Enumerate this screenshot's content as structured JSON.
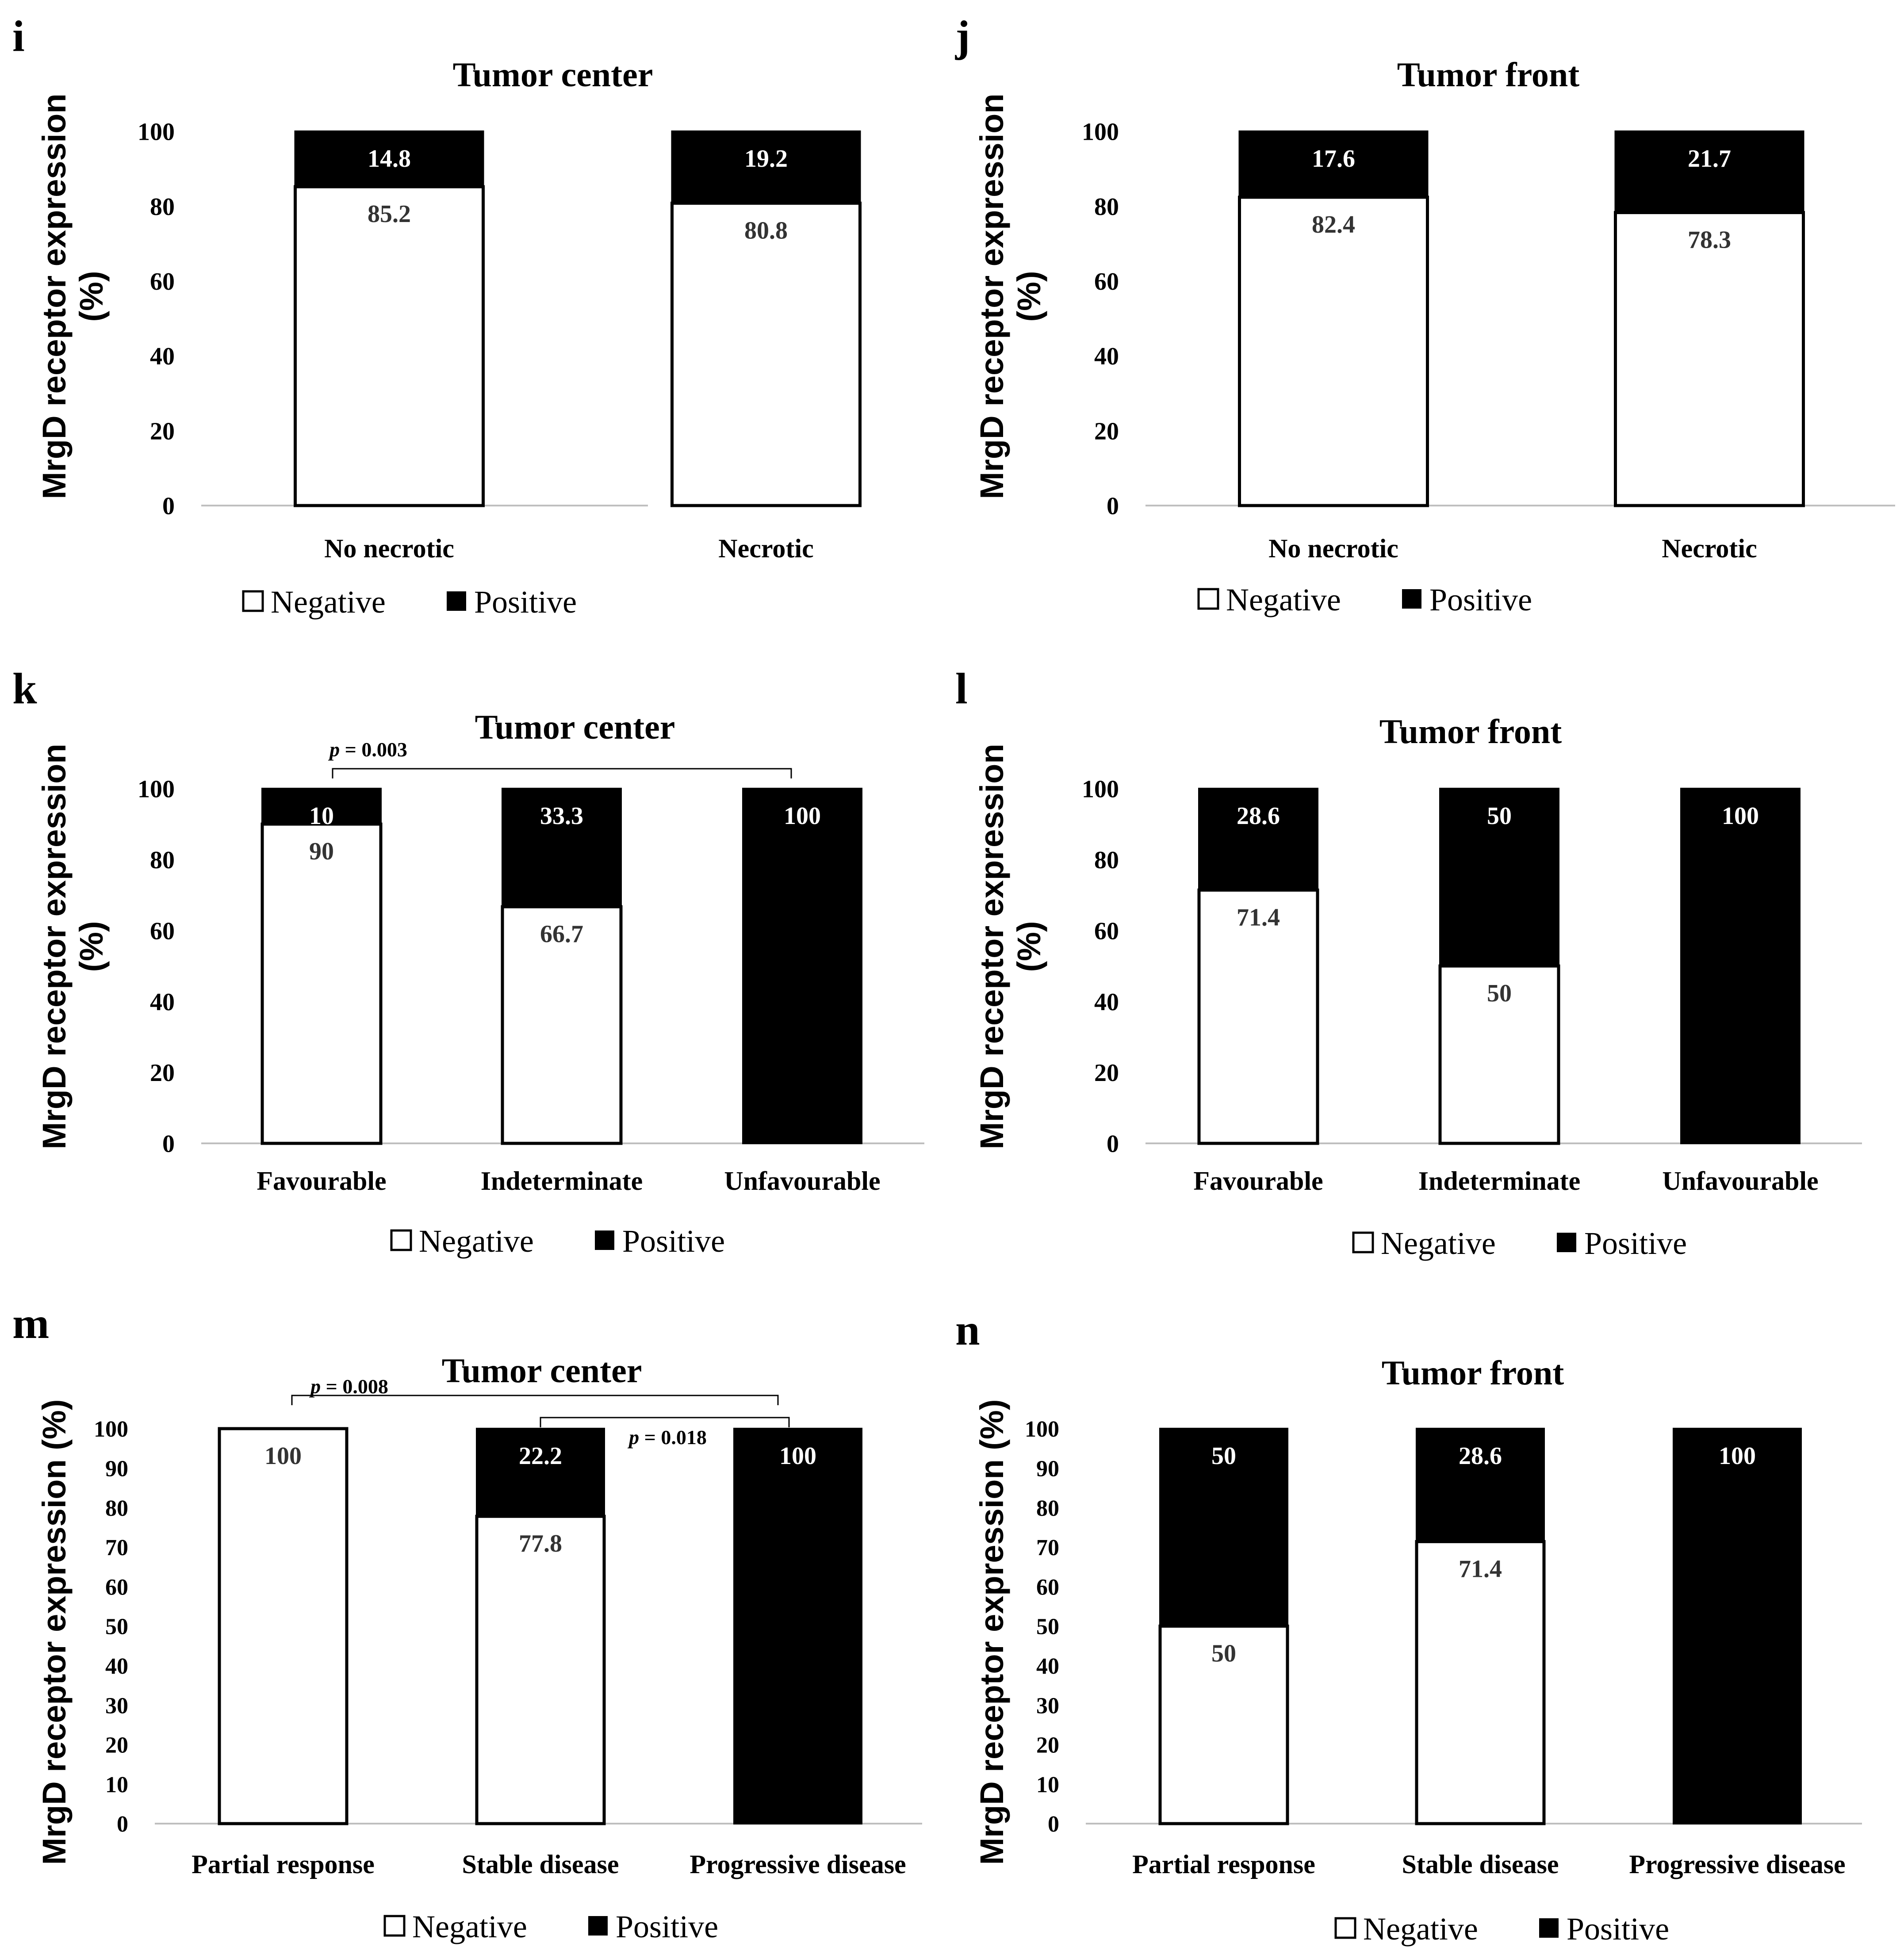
{
  "legend": {
    "negative": "Negative",
    "positive": "Positive"
  },
  "colors": {
    "negative_fill": "#ffffff",
    "positive_fill": "#000000",
    "axis": "#bfbfbf",
    "outline": "#000000"
  },
  "chart_data": [
    {
      "panel": "i",
      "type": "bar",
      "stacked": true,
      "title": "Tumor center",
      "ylabel_line1": "MrgD receptor expression",
      "ylabel_line2": "(%)",
      "ylim": [
        0,
        100
      ],
      "yticks": [
        0,
        20,
        40,
        60,
        80,
        100
      ],
      "categories": [
        "No necrotic",
        "Necrotic"
      ],
      "series": [
        {
          "name": "Negative",
          "values": [
            85.2,
            80.8
          ],
          "labels": [
            "85.2",
            "80.8"
          ]
        },
        {
          "name": "Positive",
          "values": [
            14.8,
            19.2
          ],
          "labels": [
            "14.8",
            "19.2"
          ]
        }
      ],
      "annotations": []
    },
    {
      "panel": "j",
      "type": "bar",
      "stacked": true,
      "title": "Tumor front",
      "ylabel_line1": "MrgD receptor expression",
      "ylabel_line2": "(%)",
      "ylim": [
        0,
        100
      ],
      "yticks": [
        0,
        20,
        40,
        60,
        80,
        100
      ],
      "categories": [
        "No necrotic",
        "Necrotic"
      ],
      "series": [
        {
          "name": "Negative",
          "values": [
            82.4,
            78.3
          ],
          "labels": [
            "82.4",
            "78.3"
          ]
        },
        {
          "name": "Positive",
          "values": [
            17.6,
            21.7
          ],
          "labels": [
            "17.6",
            "21.7"
          ]
        }
      ],
      "annotations": []
    },
    {
      "panel": "k",
      "type": "bar",
      "stacked": true,
      "title": "Tumor center",
      "ylabel_line1": "MrgD receptor expression",
      "ylabel_line2": "(%)",
      "ylim": [
        0,
        100
      ],
      "yticks": [
        0,
        20,
        40,
        60,
        80,
        100
      ],
      "categories": [
        "Favourable",
        "Indeterminate",
        "Unfavourable"
      ],
      "series": [
        {
          "name": "Negative",
          "values": [
            90,
            66.7,
            0
          ],
          "labels": [
            "90",
            "66.7",
            ""
          ]
        },
        {
          "name": "Positive",
          "values": [
            10,
            33.3,
            100
          ],
          "labels": [
            "10",
            "33.3",
            "100"
          ]
        }
      ],
      "annotations": [
        {
          "p": "p",
          "text": " = 0.003",
          "from": 0,
          "to": 2,
          "level": 1
        }
      ]
    },
    {
      "panel": "l",
      "type": "bar",
      "stacked": true,
      "title": "Tumor front",
      "ylabel_line1": "MrgD receptor expression",
      "ylabel_line2": "(%)",
      "ylim": [
        0,
        100
      ],
      "yticks": [
        0,
        20,
        40,
        60,
        80,
        100
      ],
      "categories": [
        "Favourable",
        "Indeterminate",
        "Unfavourable"
      ],
      "series": [
        {
          "name": "Negative",
          "values": [
            71.4,
            50,
            0
          ],
          "labels": [
            "71.4",
            "50",
            ""
          ]
        },
        {
          "name": "Positive",
          "values": [
            28.6,
            50,
            100
          ],
          "labels": [
            "28.6",
            "50",
            "100"
          ]
        }
      ],
      "annotations": []
    },
    {
      "panel": "m",
      "type": "bar",
      "stacked": true,
      "title": "Tumor center",
      "ylabel_line1": "MrgD receptor expression (%)",
      "ylabel_line2": "",
      "ylim": [
        0,
        100
      ],
      "yticks": [
        0,
        10,
        20,
        30,
        40,
        50,
        60,
        70,
        80,
        90,
        100
      ],
      "categories": [
        "Partial response",
        "Stable disease",
        "Progressive disease"
      ],
      "series": [
        {
          "name": "Negative",
          "values": [
            100,
            77.8,
            0
          ],
          "labels": [
            "100",
            "77.8",
            ""
          ]
        },
        {
          "name": "Positive",
          "values": [
            0,
            22.2,
            100
          ],
          "labels": [
            "",
            "22.2",
            "100"
          ]
        }
      ],
      "annotations": [
        {
          "p": "p",
          "text": " = 0.008",
          "from": 0,
          "to": 2,
          "level": 2
        },
        {
          "p": "p",
          "text": " = 0.018",
          "from": 1,
          "to": 2,
          "level": 1
        }
      ]
    },
    {
      "panel": "n",
      "type": "bar",
      "stacked": true,
      "title": "Tumor front",
      "ylabel_line1": "MrgD receptor expression (%)",
      "ylabel_line2": "",
      "ylim": [
        0,
        100
      ],
      "yticks": [
        0,
        10,
        20,
        30,
        40,
        50,
        60,
        70,
        80,
        90,
        100
      ],
      "categories": [
        "Partial response",
        "Stable disease",
        "Progressive disease"
      ],
      "series": [
        {
          "name": "Negative",
          "values": [
            50,
            71.4,
            0
          ],
          "labels": [
            "50",
            "71.4",
            ""
          ]
        },
        {
          "name": "Positive",
          "values": [
            50,
            28.6,
            100
          ],
          "labels": [
            "50",
            "28.6",
            "100"
          ]
        }
      ],
      "annotations": []
    }
  ]
}
